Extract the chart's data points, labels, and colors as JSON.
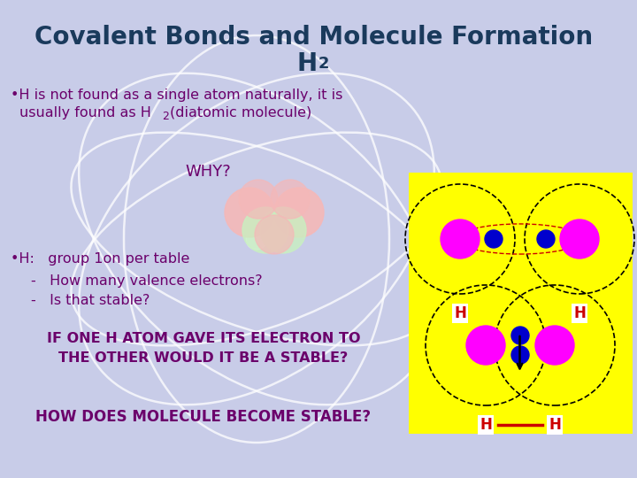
{
  "bg_color": "#c8cce8",
  "title_line1": "Covalent Bonds and Molecule Formation",
  "title_line2_h": "H",
  "title_line2_sub": "2",
  "title_color": "#1a3a5c",
  "title_fontsize": 20,
  "bullet_color": "#6b006b",
  "why_text": "WHY?",
  "if_text_line1": "IF ONE H ATOM GAVE ITS ELECTRON TO",
  "if_text_line2": "THE OTHER WOULD IT BE A STABLE?",
  "how_text": "HOW DOES MOLECULE BECOME STABLE?",
  "yellow_color": "#ffff00",
  "atom_color": "#ff00ff",
  "nucleus_color": "#0000cd",
  "h_label_color": "#cc0000",
  "bond_color": "#cc0000",
  "orbital_color": "#ffffff"
}
